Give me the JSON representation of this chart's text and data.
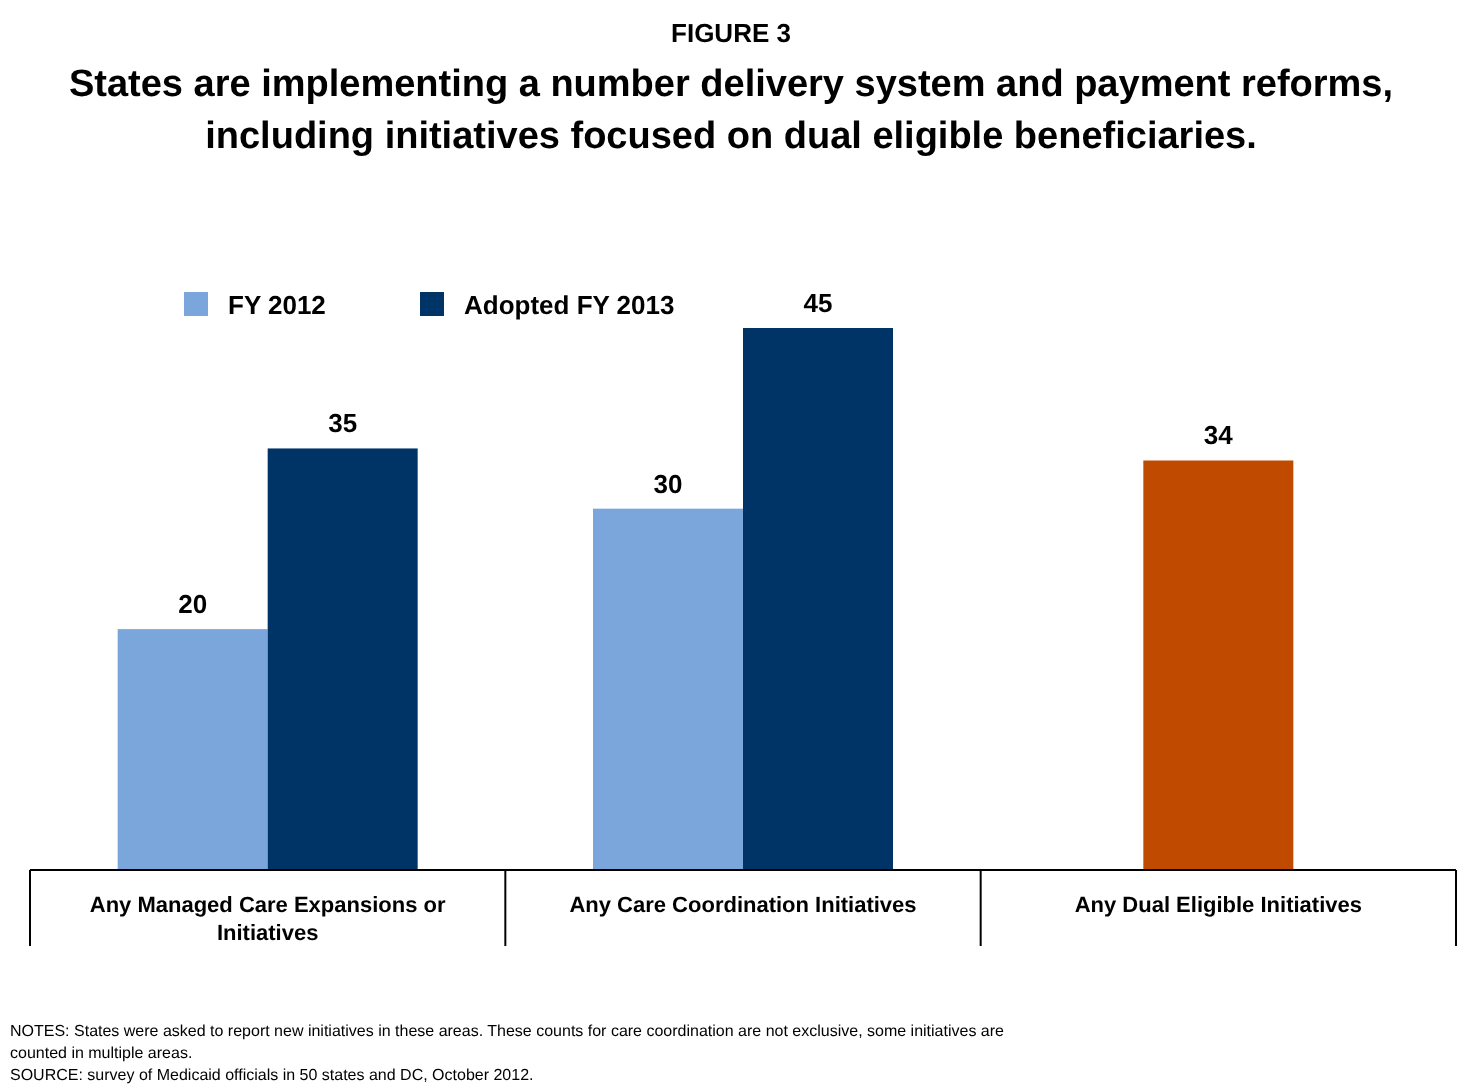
{
  "chart_data": {
    "type": "bar",
    "title": "FIGURE 3",
    "subtitle": "States are implementing a number delivery system and payment reforms, including initiatives focused on dual eligible beneficiaries.",
    "categories": [
      "Any Managed Care Expansions or Initiatives",
      "Any Care Coordination Initiatives",
      "Any Dual Eligible Initiatives"
    ],
    "series": [
      {
        "name": "FY 2012",
        "color": "#7aa6dc",
        "values": [
          20,
          30,
          null
        ]
      },
      {
        "name": "Adopted FY 2013",
        "color": "#003366",
        "values": [
          35,
          45,
          null
        ]
      },
      {
        "color": "#c04a00",
        "values": [
          null,
          null,
          34
        ]
      }
    ],
    "data_labels": true,
    "legend": "top left",
    "annotations": [
      "NOTES: States were asked to report new initiatives in these areas. These counts for care coordination are not exclusive, some initiatives are counted in multiple areas.",
      "SOURCE: survey of Medicaid officials in 50 states and DC, October 2012."
    ]
  }
}
